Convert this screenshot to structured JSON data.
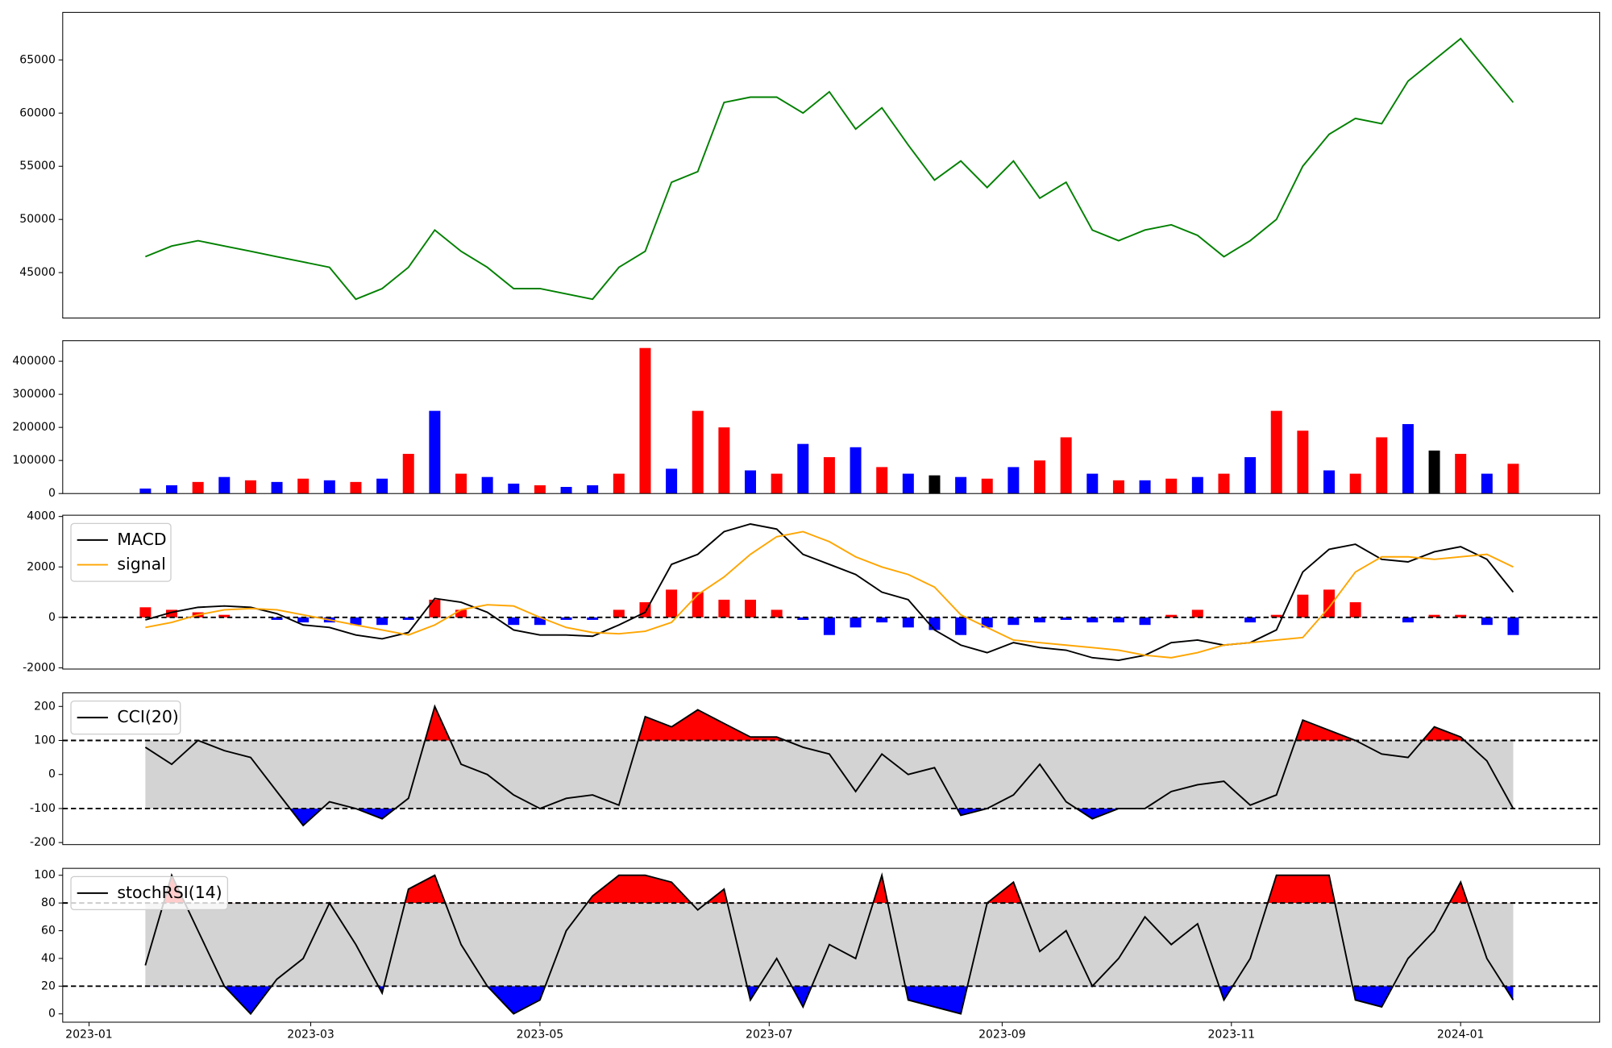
{
  "chart_data": {
    "x": [
      "2023-01-16",
      "2023-01-23",
      "2023-01-30",
      "2023-02-06",
      "2023-02-13",
      "2023-02-20",
      "2023-02-27",
      "2023-03-06",
      "2023-03-13",
      "2023-03-20",
      "2023-03-27",
      "2023-04-03",
      "2023-04-10",
      "2023-04-17",
      "2023-04-24",
      "2023-05-01",
      "2023-05-08",
      "2023-05-15",
      "2023-05-22",
      "2023-05-29",
      "2023-06-05",
      "2023-06-12",
      "2023-06-19",
      "2023-06-26",
      "2023-07-03",
      "2023-07-10",
      "2023-07-17",
      "2023-07-24",
      "2023-07-31",
      "2023-08-07",
      "2023-08-14",
      "2023-08-21",
      "2023-08-28",
      "2023-09-04",
      "2023-09-11",
      "2023-09-18",
      "2023-09-25",
      "2023-10-02",
      "2023-10-09",
      "2023-10-16",
      "2023-10-23",
      "2023-10-30",
      "2023-11-06",
      "2023-11-13",
      "2023-11-20",
      "2023-11-27",
      "2023-12-04",
      "2023-12-11",
      "2023-12-18",
      "2023-12-25",
      "2024-01-01",
      "2024-01-08",
      "2024-01-15"
    ],
    "xlim": [
      "2022-12-25",
      "2024-02-07"
    ],
    "xticks": [
      {
        "value": "2023-01-01",
        "label": "2023-01"
      },
      {
        "value": "2023-03-01",
        "label": "2023-03"
      },
      {
        "value": "2023-05-01",
        "label": "2023-05"
      },
      {
        "value": "2023-07-01",
        "label": "2023-07"
      },
      {
        "value": "2023-09-01",
        "label": "2023-09"
      },
      {
        "value": "2023-11-01",
        "label": "2023-11"
      },
      {
        "value": "2024-01-01",
        "label": "2024-01"
      }
    ],
    "panels": [
      {
        "type": "line",
        "color": "#008000",
        "values": [
          46500,
          47500,
          48000,
          47500,
          47000,
          46500,
          46000,
          45500,
          42500,
          43500,
          45500,
          49000,
          47000,
          45500,
          43500,
          43500,
          43000,
          42500,
          45500,
          47000,
          53500,
          54500,
          61000,
          61500,
          61500,
          60000,
          62000,
          58500,
          60500,
          57000,
          53700,
          55500,
          53000,
          55500,
          52000,
          53500,
          49000,
          48000,
          49000,
          49500,
          48500,
          46500,
          48000,
          50000,
          55000,
          58000,
          59500,
          59000,
          63000,
          65000,
          67000,
          64000,
          61000
        ],
        "ylim": [
          40730,
          69470
        ],
        "yticks": [
          45000,
          50000,
          55000,
          60000,
          65000
        ]
      },
      {
        "type": "bar",
        "values": [
          15000,
          25000,
          35000,
          50000,
          40000,
          35000,
          45000,
          40000,
          35000,
          45000,
          120000,
          250000,
          60000,
          50000,
          30000,
          25000,
          20000,
          25000,
          60000,
          440000,
          75000,
          250000,
          200000,
          70000,
          60000,
          150000,
          110000,
          140000,
          80000,
          60000,
          55000,
          50000,
          45000,
          80000,
          100000,
          170000,
          60000,
          40000,
          40000,
          45000,
          50000,
          60000,
          110000,
          250000,
          190000,
          70000,
          60000,
          170000,
          210000,
          130000,
          120000,
          60000,
          90000
        ],
        "colors": [
          "#0000ff",
          "#0000ff",
          "#ff0000",
          "#0000ff",
          "#ff0000",
          "#0000ff",
          "#ff0000",
          "#0000ff",
          "#ff0000",
          "#0000ff",
          "#ff0000",
          "#0000ff",
          "#ff0000",
          "#0000ff",
          "#0000ff",
          "#ff0000",
          "#0000ff",
          "#0000ff",
          "#ff0000",
          "#ff0000",
          "#0000ff",
          "#ff0000",
          "#ff0000",
          "#0000ff",
          "#ff0000",
          "#0000ff",
          "#ff0000",
          "#0000ff",
          "#ff0000",
          "#0000ff",
          "#000000",
          "#0000ff",
          "#ff0000",
          "#0000ff",
          "#ff0000",
          "#ff0000",
          "#0000ff",
          "#ff0000",
          "#0000ff",
          "#ff0000",
          "#0000ff",
          "#ff0000",
          "#0000ff",
          "#ff0000",
          "#ff0000",
          "#0000ff",
          "#ff0000",
          "#ff0000",
          "#0000ff",
          "#000000",
          "#ff0000",
          "#0000ff",
          "#ff0000"
        ],
        "ylim": [
          0,
          462000
        ],
        "yticks": [
          0,
          100000,
          200000,
          300000,
          400000
        ]
      },
      {
        "type": "combo",
        "legend": "upper left",
        "series": [
          {
            "name": "MACD",
            "color": "#000000",
            "values": [
              -100,
              200,
              400,
              450,
              400,
              150,
              -300,
              -400,
              -700,
              -850,
              -600,
              750,
              600,
              200,
              -500,
              -700,
              -700,
              -750,
              -300,
              200,
              2100,
              2500,
              3400,
              3700,
              3500,
              2500,
              2100,
              1700,
              1000,
              700,
              -500,
              -1100,
              -1400,
              -1000,
              -1200,
              -1300,
              -1600,
              -1700,
              -1500,
              -1000,
              -900,
              -1100,
              -1000,
              -500,
              1800,
              2700,
              2900,
              2300,
              2200,
              2600,
              2800,
              2300,
              1000
            ]
          },
          {
            "name": "signal",
            "color": "#ffa500",
            "values": [
              -400,
              -200,
              100,
              300,
              350,
              300,
              100,
              -100,
              -300,
              -500,
              -700,
              -300,
              300,
              500,
              450,
              0,
              -400,
              -600,
              -650,
              -550,
              -200,
              900,
              1600,
              2500,
              3200,
              3400,
              3000,
              2400,
              2000,
              1700,
              1200,
              100,
              -400,
              -900,
              -1000,
              -1100,
              -1200,
              -1300,
              -1500,
              -1600,
              -1400,
              -1100,
              -1000,
              -900,
              -800,
              400,
              1800,
              2400,
              2400,
              2300,
              2400,
              2500,
              2000
            ]
          }
        ],
        "histogram": {
          "values": [
            400,
            300,
            200,
            100,
            0,
            -100,
            -200,
            -200,
            -300,
            -300,
            -100,
            700,
            300,
            0,
            -300,
            -300,
            -100,
            -100,
            300,
            600,
            1100,
            1000,
            700,
            700,
            300,
            -100,
            -700,
            -400,
            -200,
            -400,
            -500,
            -700,
            -400,
            -300,
            -200,
            -100,
            -200,
            -200,
            -300,
            100,
            300,
            0,
            -200,
            100,
            900,
            1100,
            600,
            0,
            -200,
            100,
            100,
            -300,
            -700
          ],
          "up_color": "#ff0000",
          "down_color": "#0000ff"
        },
        "hlines": [
          0
        ],
        "ylim": [
          -2050,
          4050
        ],
        "yticks": [
          -2000,
          0,
          2000,
          4000
        ]
      },
      {
        "type": "band",
        "legend": "upper left",
        "series": [
          {
            "name": "CCI(20)",
            "color": "#000000",
            "values": [
              80,
              30,
              100,
              70,
              50,
              -50,
              -150,
              -80,
              -100,
              -130,
              -70,
              200,
              30,
              0,
              -60,
              -100,
              -70,
              -60,
              -90,
              170,
              140,
              190,
              150,
              110,
              110,
              80,
              60,
              -50,
              60,
              0,
              20,
              -120,
              -100,
              -60,
              30,
              -80,
              -130,
              -100,
              -100,
              -50,
              -30,
              -20,
              -90,
              -60,
              160,
              130,
              100,
              60,
              50,
              140,
              110,
              40,
              -100
            ]
          }
        ],
        "levels": [
          -100,
          100
        ],
        "band_color": "#d3d3d3",
        "above_color": "#ff0000",
        "below_color": "#0000ff",
        "ylim": [
          -206,
          240
        ],
        "yticks": [
          -200,
          -100,
          0,
          100,
          200
        ]
      },
      {
        "type": "band",
        "legend": "upper left",
        "series": [
          {
            "name": "stochRSI(14)",
            "color": "#000000",
            "values": [
              35,
              100,
              60,
              20,
              0,
              25,
              40,
              80,
              50,
              15,
              90,
              100,
              50,
              20,
              0,
              10,
              60,
              85,
              100,
              100,
              95,
              75,
              90,
              10,
              40,
              5,
              50,
              40,
              100,
              10,
              5,
              0,
              80,
              95,
              45,
              60,
              20,
              40,
              70,
              50,
              65,
              10,
              40,
              100,
              100,
              100,
              10,
              5,
              40,
              60,
              95,
              40,
              10
            ]
          }
        ],
        "levels": [
          20,
          80
        ],
        "band_color": "#d3d3d3",
        "above_color": "#ff0000",
        "below_color": "#0000ff",
        "ylim": [
          -6,
          105
        ],
        "yticks": [
          0,
          20,
          40,
          60,
          80,
          100
        ]
      }
    ]
  }
}
